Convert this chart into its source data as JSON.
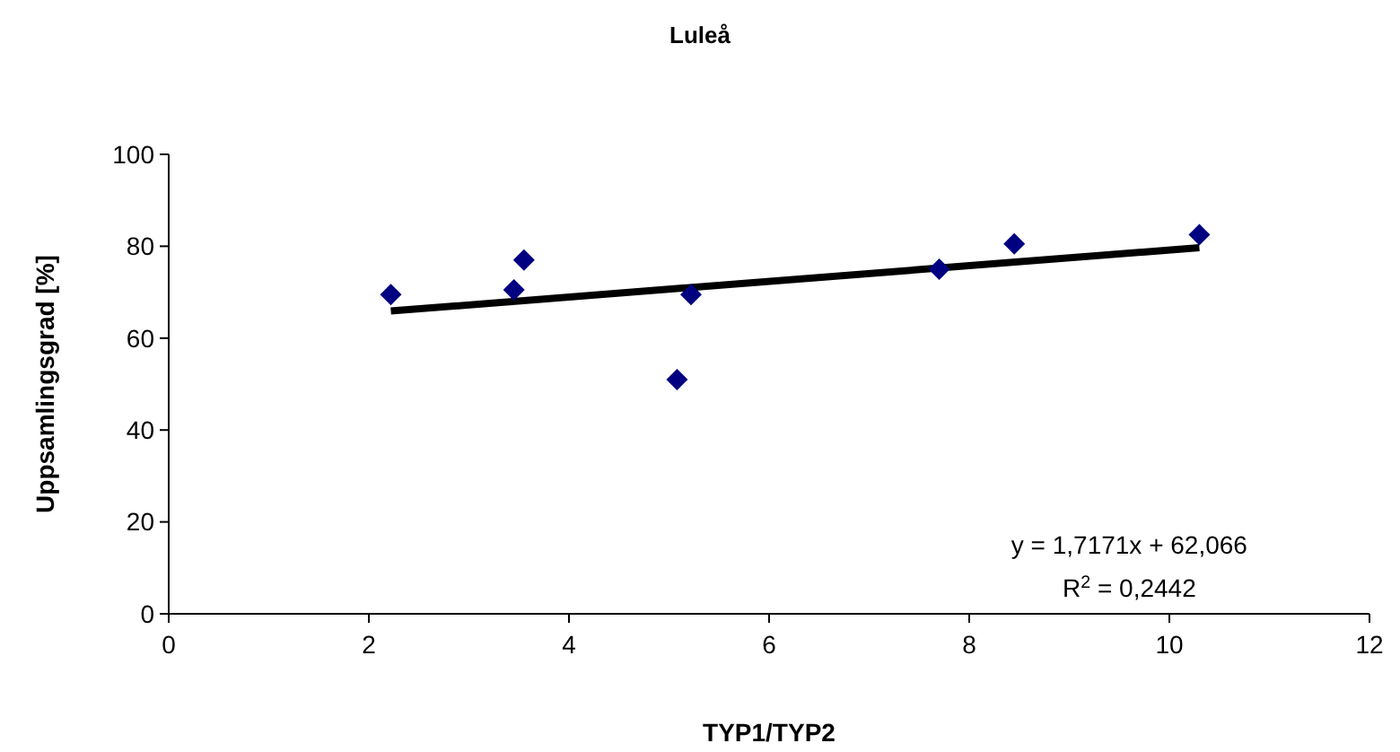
{
  "chart_data": {
    "type": "scatter",
    "title": "Luleå",
    "xlabel": "TYP1/TYP2",
    "ylabel": "Uppsamlingsgrad [%]",
    "xlim": [
      0,
      12
    ],
    "xticks": [
      0,
      2,
      4,
      6,
      8,
      10,
      12
    ],
    "ylim": [
      0,
      100
    ],
    "yticks": [
      0,
      20,
      40,
      60,
      80,
      100
    ],
    "grid": false,
    "marker": "diamond",
    "series": [
      {
        "color": "#000080",
        "x": [
          2.22,
          3.45,
          3.55,
          5.08,
          5.22,
          7.7,
          8.45,
          10.3
        ],
        "values": [
          69.5,
          70.5,
          77,
          51,
          69.5,
          75,
          80.5,
          82.5
        ]
      },
      {
        "type": "line",
        "color": "#000000",
        "line_style": "solid",
        "marker": "none",
        "x": [
          2.22,
          10.3
        ],
        "values": [
          65.9,
          79.7
        ]
      }
    ],
    "annotations": [
      "y = 1,7171x + 62,066",
      "R$^{2}$ = 0,2442"
    ]
  }
}
